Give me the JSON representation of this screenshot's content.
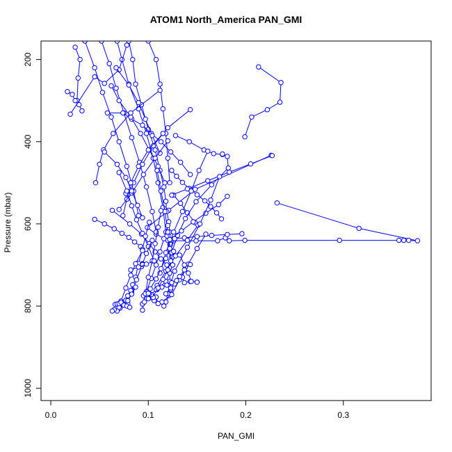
{
  "chart_data": {
    "type": "line",
    "title": "ATOM1 North_America PAN_GMI",
    "xlabel": "PAN_GMI",
    "ylabel": "Pressure (mbar)",
    "xlim": [
      -0.01,
      0.39
    ],
    "ylim": [
      1030,
      155
    ],
    "y_reversed": true,
    "x_ticks": [
      0.0,
      0.1,
      0.2,
      0.3
    ],
    "x_tick_labels": [
      "0.0",
      "0.1",
      "0.2",
      "0.3"
    ],
    "y_ticks": [
      200,
      400,
      600,
      800,
      1000
    ],
    "y_tick_labels": [
      "200",
      "400",
      "600",
      "800",
      "1000"
    ],
    "grid": false,
    "color": "#0000ff",
    "marker": "open-circle",
    "series": [
      {
        "x": [
          0.213,
          0.236,
          0.235,
          0.222,
          0.206,
          0.199
        ],
        "y": [
          218,
          256,
          304,
          322,
          340,
          388
        ]
      },
      {
        "x": [
          0.226,
          0.148,
          0.121,
          0.099,
          0.108,
          0.12,
          0.122,
          0.124,
          0.125,
          0.122,
          0.122,
          0.123,
          0.121,
          0.118,
          0.116
        ],
        "y": [
          433,
          516,
          567,
          609,
          625,
          640,
          660,
          680,
          700,
          720,
          740,
          760,
          775,
          790,
          800
        ]
      },
      {
        "x": [
          0.232,
          0.316,
          0.376,
          0.367,
          0.362,
          0.357,
          0.296,
          0.199,
          0.183,
          0.179,
          0.171,
          0.149,
          0.126,
          0.122,
          0.124,
          0.125,
          0.122,
          0.118,
          0.109,
          0.1,
          0.095
        ],
        "y": [
          549,
          611,
          641,
          640,
          640,
          640,
          640,
          640,
          641,
          634,
          641,
          641,
          641,
          650,
          680,
          700,
          720,
          740,
          760,
          775,
          775
        ]
      },
      {
        "x": [
          0.08,
          0.084,
          0.087,
          0.093,
          0.1,
          0.107,
          0.112,
          0.116,
          0.118,
          0.119,
          0.121,
          0.122,
          0.123,
          0.125
        ],
        "y": [
          155,
          200,
          260,
          310,
          370,
          420,
          470,
          510,
          545,
          570,
          595,
          620,
          650,
          680
        ]
      },
      {
        "x": [
          0.1,
          0.108,
          0.112,
          0.115,
          0.118,
          0.12,
          0.122
        ],
        "y": [
          155,
          200,
          260,
          320,
          380,
          440,
          500
        ]
      },
      {
        "x": [
          0.068,
          0.073,
          0.08,
          0.09,
          0.098,
          0.105,
          0.11,
          0.115,
          0.118
        ],
        "y": [
          155,
          200,
          260,
          320,
          380,
          440,
          500,
          560,
          620
        ]
      },
      {
        "x": [
          0.052,
          0.06,
          0.067,
          0.075,
          0.083,
          0.091,
          0.098,
          0.104,
          0.108
        ],
        "y": [
          155,
          210,
          270,
          330,
          390,
          450,
          510,
          570,
          620
        ]
      },
      {
        "x": [
          0.035,
          0.045,
          0.053,
          0.062,
          0.07,
          0.078,
          0.085,
          0.09
        ],
        "y": [
          155,
          220,
          280,
          340,
          400,
          460,
          520,
          580
        ]
      },
      {
        "x": [
          0.025,
          0.03,
          0.028,
          0.027
        ],
        "y": [
          170,
          200,
          245,
          300
        ]
      },
      {
        "x": [
          0.017,
          0.022,
          0.025,
          0.029,
          0.032
        ],
        "y": [
          278,
          285,
          300,
          310,
          325
        ]
      },
      {
        "x": [
          0.02,
          0.045,
          0.055,
          0.07,
          0.078
        ],
        "y": [
          333,
          242,
          258,
          225,
          165
        ]
      },
      {
        "x": [
          0.058,
          0.074,
          0.083,
          0.094,
          0.103,
          0.113,
          0.123,
          0.133,
          0.143
        ],
        "y": [
          330,
          330,
          345,
          360,
          380,
          400,
          425,
          450,
          480
        ]
      },
      {
        "x": [
          0.062,
          0.07,
          0.082,
          0.092,
          0.101,
          0.11,
          0.117
        ],
        "y": [
          264,
          300,
          340,
          380,
          420,
          460,
          500
        ]
      },
      {
        "x": [
          0.112,
          0.082,
          0.064,
          0.054,
          0.05,
          0.046
        ],
        "y": [
          275,
          330,
          380,
          420,
          455,
          500
        ]
      },
      {
        "x": [
          0.067,
          0.08,
          0.09,
          0.097,
          0.104,
          0.112
        ],
        "y": [
          220,
          262,
          305,
          345,
          385,
          428
        ]
      },
      {
        "x": [
          0.143,
          0.12,
          0.105,
          0.094,
          0.085,
          0.079,
          0.077
        ],
        "y": [
          322,
          366,
          410,
          455,
          500,
          530,
          526
        ]
      },
      {
        "x": [
          0.128,
          0.142,
          0.157,
          0.167,
          0.176
        ],
        "y": [
          385,
          400,
          420,
          429,
          431
        ]
      },
      {
        "x": [
          0.115,
          0.1,
          0.09,
          0.082,
          0.078,
          0.074
        ],
        "y": [
          380,
          420,
          460,
          500,
          540,
          580
        ]
      },
      {
        "x": [
          0.12,
          0.107,
          0.095,
          0.083,
          0.07
        ],
        "y": [
          398,
          440,
          480,
          525,
          565
        ]
      },
      {
        "x": [
          0.063,
          0.081,
          0.093,
          0.101,
          0.107,
          0.113,
          0.119
        ],
        "y": [
          567,
          600,
          625,
          648,
          668,
          685,
          700
        ]
      },
      {
        "x": [
          0.07,
          0.078,
          0.083,
          0.088,
          0.094,
          0.1,
          0.106
        ],
        "y": [
          475,
          520,
          556,
          590,
          623,
          655,
          690
        ]
      },
      {
        "x": [
          0.055,
          0.068,
          0.077,
          0.083,
          0.089,
          0.094
        ],
        "y": [
          425,
          455,
          487,
          520,
          555,
          585
        ]
      },
      {
        "x": [
          0.045,
          0.055,
          0.065,
          0.073,
          0.08,
          0.086,
          0.092
        ],
        "y": [
          589,
          600,
          612,
          623,
          633,
          644,
          655
        ]
      },
      {
        "x": [
          0.109,
          0.113,
          0.117,
          0.12,
          0.123
        ],
        "y": [
          470,
          520,
          570,
          620,
          670
        ]
      },
      {
        "x": [
          0.124,
          0.129,
          0.135,
          0.142,
          0.15,
          0.158,
          0.164,
          0.17,
          0.175
        ],
        "y": [
          470,
          484,
          499,
          514,
          529,
          544,
          558,
          573,
          588
        ]
      },
      {
        "x": [
          0.126,
          0.133,
          0.14,
          0.148
        ],
        "y": [
          530,
          550,
          573,
          597
        ]
      },
      {
        "x": [
          0.161,
          0.152,
          0.144,
          0.135,
          0.126,
          0.118,
          0.112
        ],
        "y": [
          423,
          470,
          520,
          570,
          620,
          670,
          720
        ]
      },
      {
        "x": [
          0.176,
          0.181,
          0.182,
          0.165,
          0.149,
          0.138,
          0.13,
          0.124
        ],
        "y": [
          430,
          436,
          464,
          505,
          546,
          587,
          628,
          670
        ]
      },
      {
        "x": [
          0.196,
          0.181,
          0.165,
          0.15,
          0.137,
          0.126
        ],
        "y": [
          624,
          626,
          628,
          631,
          634,
          637
        ]
      },
      {
        "x": [
          0.181,
          0.172,
          0.159,
          0.146,
          0.134,
          0.122
        ],
        "y": [
          533,
          553,
          574,
          595,
          617,
          638
        ]
      },
      {
        "x": [
          0.227,
          0.205,
          0.183,
          0.161,
          0.14,
          0.124
        ],
        "y": [
          434,
          454,
          474,
          495,
          515,
          530
        ]
      },
      {
        "x": [
          0.151,
          0.14,
          0.128,
          0.118,
          0.109
        ],
        "y": [
          603,
          640,
          678,
          715,
          750
        ]
      },
      {
        "x": [
          0.173,
          0.164,
          0.153,
          0.14,
          0.127,
          0.12
        ],
        "y": [
          485,
          542,
          600,
          657,
          715,
          770
        ]
      },
      {
        "x": [
          0.159,
          0.15,
          0.141,
          0.132,
          0.124,
          0.114
        ],
        "y": [
          625,
          660,
          698,
          736,
          772,
          790
        ]
      },
      {
        "x": [
          0.143,
          0.138,
          0.135,
          0.137,
          0.143,
          0.15
        ],
        "y": [
          699,
          705,
          730,
          743,
          740,
          742
        ]
      },
      {
        "x": [
          0.132,
          0.137,
          0.141,
          0.144,
          0.15
        ],
        "y": [
          676,
          700,
          720,
          740,
          742
        ]
      },
      {
        "x": [
          0.137,
          0.132,
          0.127,
          0.123,
          0.118
        ],
        "y": [
          712,
          728,
          746,
          756,
          770
        ]
      },
      {
        "x": [
          0.108,
          0.114,
          0.119,
          0.124,
          0.129
        ],
        "y": [
          760,
          754,
          749,
          743,
          738
        ]
      },
      {
        "x": [
          0.126,
          0.123,
          0.12,
          0.115,
          0.11,
          0.104
        ],
        "y": [
          667,
          690,
          712,
          735,
          756,
          780
        ]
      },
      {
        "x": [
          0.127,
          0.122,
          0.118,
          0.113,
          0.108,
          0.102
        ],
        "y": [
          636,
          660,
          684,
          709,
          734,
          758
        ]
      },
      {
        "x": [
          0.12,
          0.116,
          0.112,
          0.108,
          0.103,
          0.098,
          0.094
        ],
        "y": [
          604,
          636,
          668,
          700,
          733,
          765,
          795
        ]
      },
      {
        "x": [
          0.113,
          0.11,
          0.107,
          0.104,
          0.1,
          0.097,
          0.094
        ],
        "y": [
          568,
          608,
          648,
          690,
          730,
          770,
          810
        ]
      },
      {
        "x": [
          0.101,
          0.097,
          0.094,
          0.09,
          0.087,
          0.083,
          0.079
        ],
        "y": [
          596,
          630,
          662,
          696,
          730,
          762,
          794
        ]
      },
      {
        "x": [
          0.104,
          0.098,
          0.093,
          0.088,
          0.083
        ],
        "y": [
          640,
          672,
          704,
          736,
          768
        ]
      },
      {
        "x": [
          0.094,
          0.087,
          0.082,
          0.077,
          0.072
        ],
        "y": [
          665,
          697,
          725,
          756,
          788
        ]
      },
      {
        "x": [
          0.094,
          0.094,
          0.094
        ],
        "y": [
          697,
          698,
          699
        ]
      },
      {
        "x": [
          0.082,
          0.09,
          0.098,
          0.106
        ],
        "y": [
          712,
          705,
          698,
          690
        ]
      },
      {
        "x": [
          0.084,
          0.082,
          0.079,
          0.077,
          0.074,
          0.071,
          0.068
        ],
        "y": [
          748,
          762,
          775,
          786,
          797,
          805,
          812
        ]
      },
      {
        "x": [
          0.087,
          0.083,
          0.079,
          0.075,
          0.07,
          0.065,
          0.063
        ],
        "y": [
          754,
          771,
          787,
          796,
          803,
          809,
          812
        ]
      },
      {
        "x": [
          0.066,
          0.068,
          0.07,
          0.072,
          0.075,
          0.078,
          0.081
        ],
        "y": [
          796,
          795,
          794,
          791,
          798,
          800,
          803
        ]
      },
      {
        "x": [
          0.094,
          0.096,
          0.1,
          0.104,
          0.108,
          0.11
        ],
        "y": [
          795,
          790,
          782,
          775,
          778,
          794
        ]
      },
      {
        "x": [
          0.106,
          0.105,
          0.103,
          0.101,
          0.1
        ],
        "y": [
          787,
          779,
          772,
          770,
          769
        ]
      }
    ]
  }
}
